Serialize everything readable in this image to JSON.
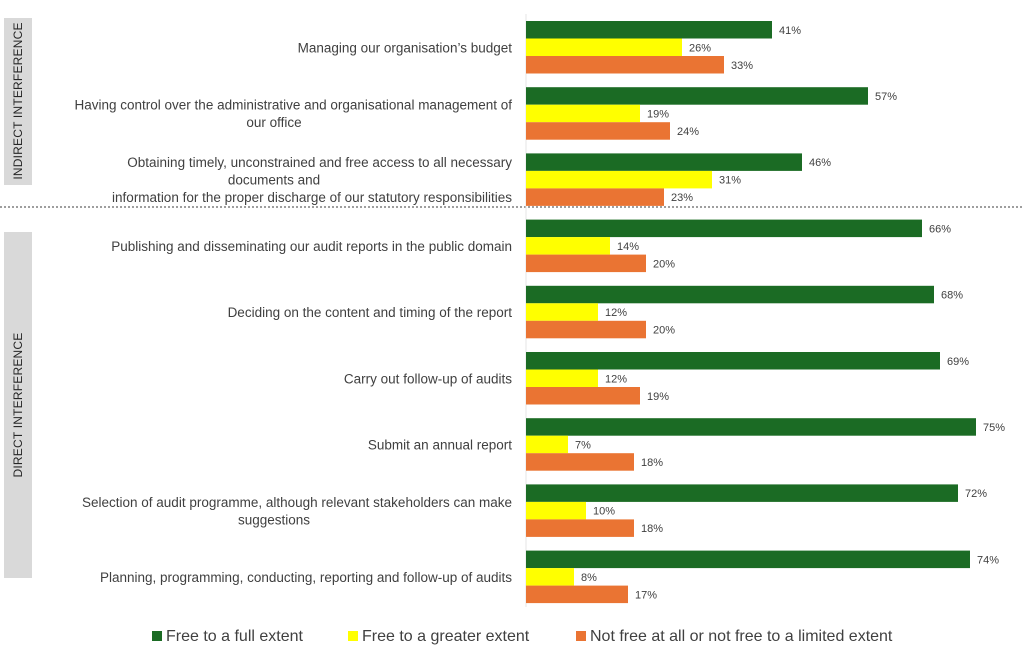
{
  "chart_data": {
    "type": "bar",
    "orientation": "horizontal",
    "title": "",
    "xlabel": "",
    "ylabel": "",
    "xlim": [
      0,
      100
    ],
    "value_format": "percent",
    "grid": false,
    "legend_position": "bottom",
    "groups": [
      {
        "label": "INDIRECT INTERFERENCE",
        "category_indices": [
          0,
          1,
          2
        ]
      },
      {
        "label": "DIRECT INTERFERENCE",
        "category_indices": [
          3,
          4,
          5,
          6,
          7,
          8
        ]
      }
    ],
    "categories": [
      [
        "Managing our organisation’s budget"
      ],
      [
        "Having control over the administrative and organisational management of",
        "our office"
      ],
      [
        "Obtaining timely, unconstrained and free access to all necessary",
        "documents and",
        "information for the proper discharge of our statutory responsibilities"
      ],
      [
        "Publishing and disseminating our audit reports in the public domain"
      ],
      [
        "Deciding on the content and timing of the report"
      ],
      [
        "Carry out follow-up of audits"
      ],
      [
        "Submit an annual report"
      ],
      [
        "Selection of audit programme, although relevant stakeholders can make",
        "suggestions"
      ],
      [
        "Planning, programming, conducting, reporting and follow-up of audits"
      ]
    ],
    "series": [
      {
        "name": "Free to a full extent",
        "color": "#1b6b24",
        "values": [
          41,
          57,
          46,
          66,
          68,
          69,
          75,
          72,
          74
        ]
      },
      {
        "name": "Free to a greater extent",
        "color": "#ffff00",
        "values": [
          26,
          19,
          31,
          14,
          12,
          12,
          7,
          10,
          8
        ]
      },
      {
        "name": "Not free at all or not free to a limited extent",
        "color": "#ea7433",
        "values": [
          33,
          24,
          23,
          20,
          20,
          19,
          18,
          18,
          17
        ]
      }
    ]
  }
}
